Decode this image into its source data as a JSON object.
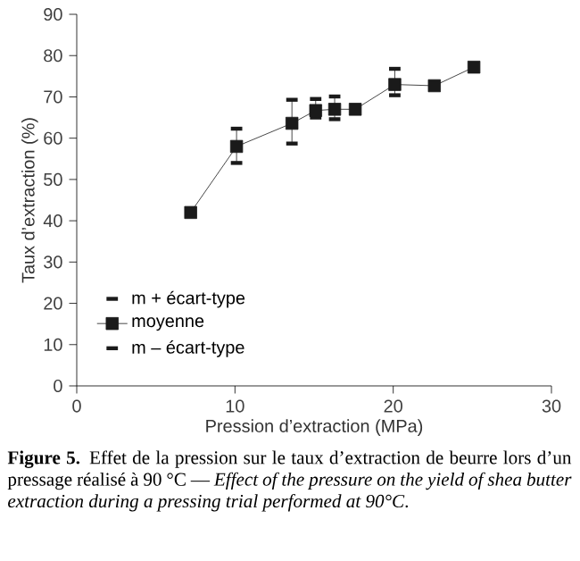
{
  "chart_data": {
    "type": "line",
    "xlabel": "Pression d’extraction (MPa)",
    "ylabel": "Taux d’extraction (%)",
    "annotations": [
      "**Figure 5.** Effet de la pression sur le taux d’extraction de beurre lors d’un pressage réalisé à 90 °C — *Effect of the pressure on the yield of shea butter extraction during a pressing trial performed at 90°C*.",
      "m + écart-type",
      "m – écart-type"
    ],
    "xlim": [
      0,
      30
    ],
    "ylim": [
      0,
      90
    ],
    "xticks": [
      0,
      10,
      20,
      30
    ],
    "yticks": [
      0,
      10,
      20,
      30,
      40,
      50,
      60,
      70,
      80,
      90
    ],
    "legend": "bottom left",
    "marker": "square",
    "x": [
      7.2,
      10.1,
      13.6,
      15.1,
      16.3,
      17.6,
      20.1,
      22.6,
      25.1
    ],
    "series": [
      {
        "name": "moyenne",
        "color": "#1a1a1a",
        "values": [
          42,
          58,
          63.6,
          66.7,
          67,
          67,
          73,
          72.7,
          77.2
        ],
        "errors": [
          null,
          [
            54,
            62.3
          ],
          [
            58.7,
            69.3
          ],
          [
            65,
            69.5
          ],
          [
            64.6,
            70.1
          ],
          null,
          [
            70.4,
            76.8
          ],
          null,
          null
        ]
      }
    ]
  }
}
